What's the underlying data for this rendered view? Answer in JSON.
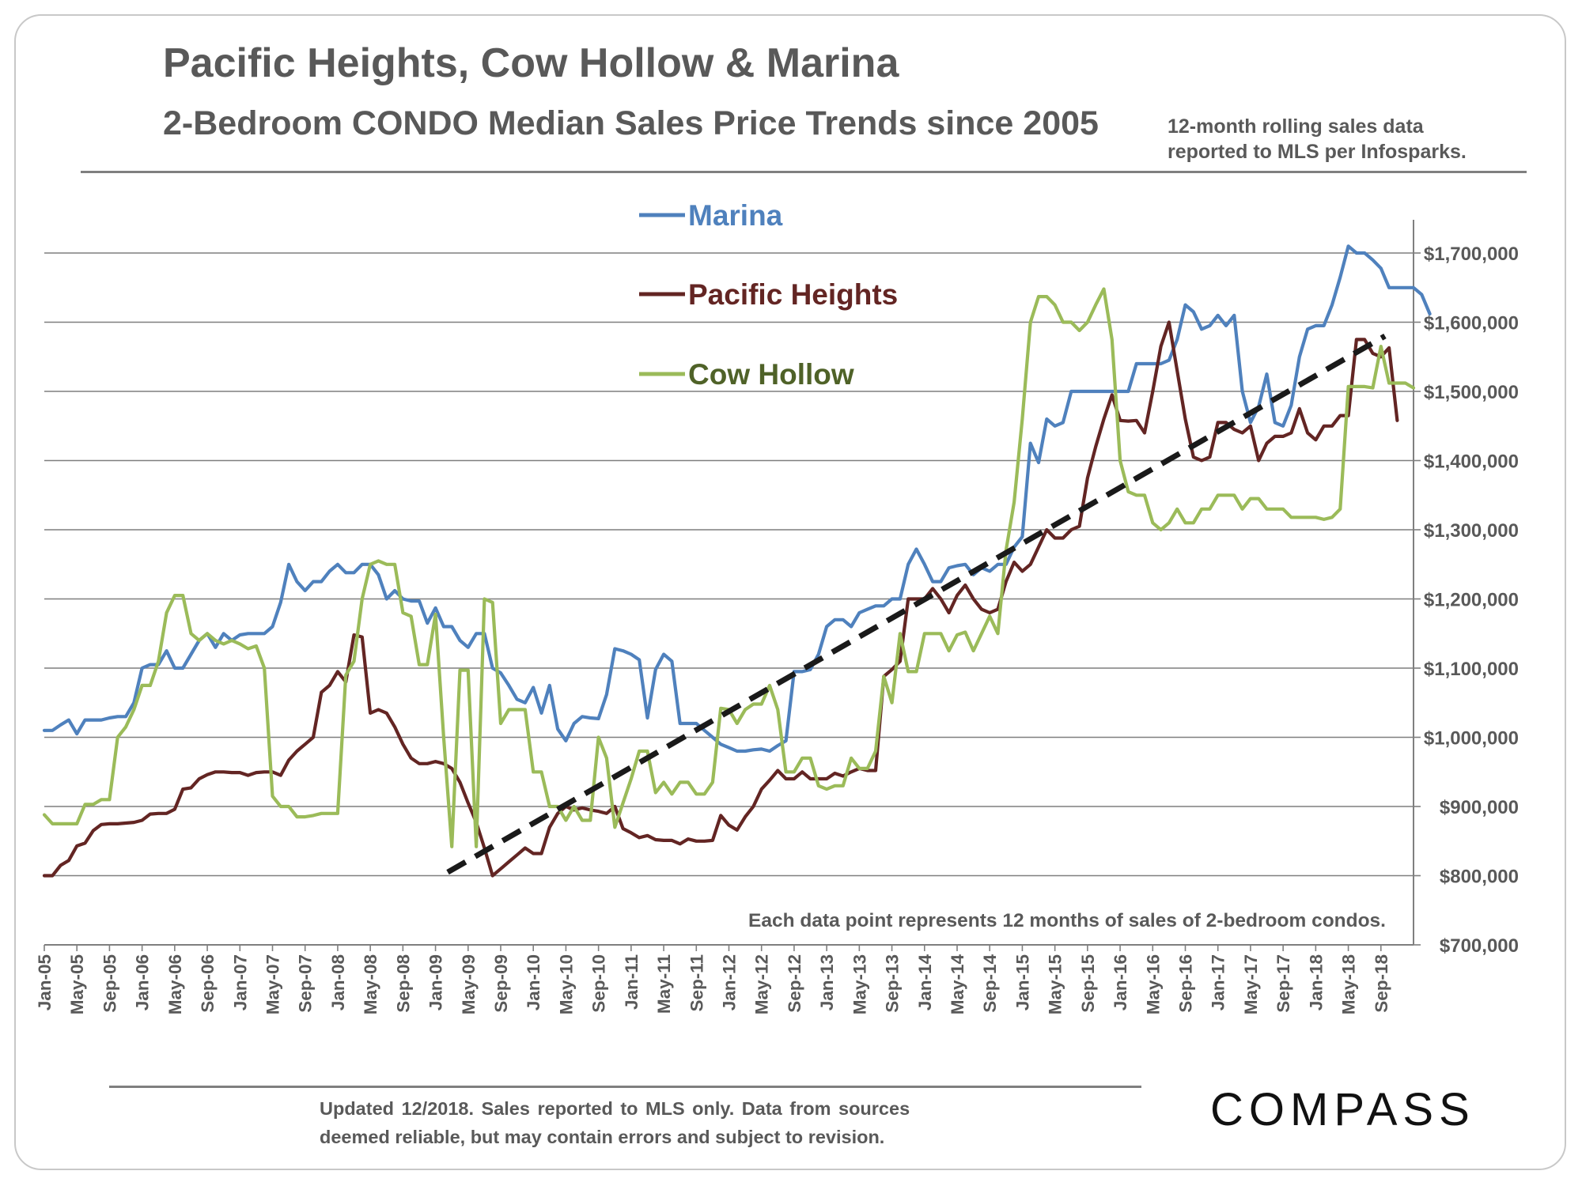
{
  "chart_data": {
    "type": "line",
    "title": "Pacific Heights, Cow Hollow & Marina",
    "subtitle": "2-Bedroom CONDO Median Sales Price Trends since 2005",
    "note_lines": [
      "12-month rolling sales data",
      "reported to MLS per Infosparks."
    ],
    "annotation": "Each data point represents 12 months of sales of 2-bedroom condos.",
    "ylim": [
      700000,
      1700000
    ],
    "y_ticks": [
      "$1,700,000",
      "$1,600,000",
      "$1,500,000",
      "$1,400,000",
      "$1,300,000",
      "$1,200,000",
      "$1,100,000",
      "$1,000,000",
      "$900,000",
      "$800,000",
      "$700,000"
    ],
    "x_ticks": [
      "Jan-05",
      "May-05",
      "Sep-05",
      "Jan-06",
      "May-06",
      "Sep-06",
      "Jan-07",
      "May-07",
      "Sep-07",
      "Jan-08",
      "May-08",
      "Sep-08",
      "Jan-09",
      "May-09",
      "Sep-09",
      "Jan-10",
      "May-10",
      "Sep-10",
      "Jan-11",
      "May-11",
      "Sep-11",
      "Jan-12",
      "May-12",
      "Sep-12",
      "Jan-13",
      "May-13",
      "Sep-13",
      "Jan-14",
      "May-14",
      "Sep-14",
      "Jan-15",
      "May-15",
      "Sep-15",
      "Jan-16",
      "May-16",
      "Sep-16",
      "Jan-17",
      "May-17",
      "Sep-17",
      "Jan-18",
      "May-18",
      "Sep-18"
    ],
    "x_range": [
      0,
      167
    ],
    "series": [
      {
        "name": "Marina",
        "color": "#4f81bd",
        "values": [
          1010000,
          1010000,
          1018000,
          1025000,
          1005000,
          1025000,
          1025000,
          1025000,
          1028000,
          1030000,
          1030000,
          1050000,
          1100000,
          1105000,
          1105000,
          1125000,
          1100000,
          1100000,
          1120000,
          1140000,
          1150000,
          1130000,
          1150000,
          1140000,
          1148000,
          1150000,
          1150000,
          1150000,
          1160000,
          1195000,
          1250000,
          1225000,
          1212000,
          1225000,
          1225000,
          1240000,
          1250000,
          1238000,
          1238000,
          1250000,
          1250000,
          1235000,
          1200000,
          1212000,
          1200000,
          1197000,
          1197000,
          1165000,
          1187000,
          1160000,
          1160000,
          1140000,
          1130000,
          1150000,
          1150000,
          1100000,
          1093000,
          1075000,
          1055000,
          1050000,
          1072000,
          1035000,
          1075000,
          1012000,
          995000,
          1020000,
          1030000,
          1028000,
          1027000,
          1062000,
          1128000,
          1125000,
          1120000,
          1112000,
          1028000,
          1098000,
          1120000,
          1110000,
          1020000,
          1020000,
          1020000,
          1010000,
          1000000,
          990000,
          985000,
          980000,
          980000,
          982000,
          983000,
          980000,
          988000,
          995000,
          1095000,
          1095000,
          1098000,
          1120000,
          1160000,
          1170000,
          1170000,
          1160000,
          1180000,
          1185000,
          1190000,
          1190000,
          1200000,
          1200000,
          1250000,
          1272000,
          1250000,
          1225000,
          1225000,
          1245000,
          1248000,
          1250000,
          1235000,
          1245000,
          1240000,
          1250000,
          1250000,
          1275000,
          1290000,
          1425000,
          1397000,
          1460000,
          1450000,
          1455000,
          1500000,
          1500000,
          1500000,
          1500000,
          1500000,
          1500000,
          1500000,
          1500000,
          1540000,
          1540000,
          1540000,
          1540000,
          1545000,
          1575000,
          1625000,
          1615000,
          1590000,
          1595000,
          1610000,
          1595000,
          1610000,
          1500000,
          1455000,
          1478000,
          1525000,
          1455000,
          1450000,
          1480000,
          1550000,
          1590000,
          1595000,
          1595000,
          1625000,
          1665000,
          1710000,
          1700000,
          1700000,
          1690000,
          1678000,
          1650000,
          1650000,
          1650000,
          1650000,
          1640000,
          1612000
        ]
      },
      {
        "name": "Pacific Heights",
        "color": "#632523",
        "values": [
          800000,
          800000,
          815000,
          822000,
          843000,
          847000,
          865000,
          874000,
          875000,
          875000,
          876000,
          877000,
          880000,
          889000,
          890000,
          890000,
          896000,
          925000,
          927000,
          940000,
          946000,
          950000,
          950000,
          949000,
          949000,
          945000,
          949000,
          950000,
          950000,
          945000,
          967000,
          980000,
          990000,
          1000000,
          1065000,
          1075000,
          1095000,
          1080000,
          1148000,
          1145000,
          1035000,
          1040000,
          1035000,
          1015000,
          990000,
          970000,
          962000,
          962000,
          965000,
          962000,
          955000,
          935000,
          905000,
          877000,
          840000,
          800000,
          810000,
          820000,
          830000,
          840000,
          832000,
          832000,
          870000,
          890000,
          900000,
          895000,
          898000,
          895000,
          893000,
          890000,
          900000,
          868000,
          862000,
          855000,
          858000,
          852000,
          851000,
          851000,
          846000,
          853000,
          850000,
          850000,
          851000,
          887000,
          873000,
          866000,
          885000,
          900000,
          925000,
          938000,
          952000,
          940000,
          940000,
          950000,
          940000,
          940000,
          940000,
          948000,
          944000,
          950000,
          955000,
          952000,
          952000,
          1088000,
          1098000,
          1110000,
          1200000,
          1200000,
          1200000,
          1215000,
          1200000,
          1180000,
          1205000,
          1220000,
          1200000,
          1185000,
          1180000,
          1185000,
          1225000,
          1253000,
          1240000,
          1250000,
          1275000,
          1300000,
          1288000,
          1288000,
          1300000,
          1305000,
          1375000,
          1420000,
          1460000,
          1495000,
          1458000,
          1457000,
          1458000,
          1440000,
          1500000,
          1565000,
          1600000,
          1530000,
          1460000,
          1405000,
          1400000,
          1405000,
          1455000,
          1455000,
          1445000,
          1440000,
          1450000,
          1400000,
          1425000,
          1435000,
          1435000,
          1440000,
          1475000,
          1440000,
          1430000,
          1450000,
          1450000,
          1465000,
          1465000,
          1575000,
          1575000,
          1555000,
          1550000,
          1563000,
          1458000
        ]
      },
      {
        "name": "Cow Hollow",
        "color": "#9bbb59",
        "values": [
          888000,
          875000,
          875000,
          875000,
          875000,
          903000,
          903000,
          910000,
          910000,
          1000000,
          1015000,
          1040000,
          1075000,
          1075000,
          1110000,
          1180000,
          1205000,
          1205000,
          1150000,
          1140000,
          1150000,
          1140000,
          1135000,
          1140000,
          1135000,
          1128000,
          1132000,
          1100000,
          915000,
          900000,
          900000,
          885000,
          885000,
          887000,
          890000,
          890000,
          890000,
          1090000,
          1110000,
          1200000,
          1250000,
          1255000,
          1250000,
          1250000,
          1180000,
          1175000,
          1105000,
          1105000,
          1178000,
          1000000,
          842000,
          1097000,
          1097000,
          842000,
          1200000,
          1195000,
          1020000,
          1040000,
          1040000,
          1040000,
          950000,
          950000,
          900000,
          900000,
          880000,
          900000,
          880000,
          880000,
          1000000,
          970000,
          870000,
          905000,
          940000,
          980000,
          980000,
          920000,
          935000,
          918000,
          935000,
          935000,
          918000,
          918000,
          935000,
          1042000,
          1040000,
          1020000,
          1040000,
          1048000,
          1048000,
          1075000,
          1040000,
          950000,
          950000,
          970000,
          970000,
          930000,
          925000,
          930000,
          930000,
          970000,
          955000,
          955000,
          980000,
          1088000,
          1050000,
          1150000,
          1095000,
          1095000,
          1150000,
          1150000,
          1150000,
          1125000,
          1148000,
          1152000,
          1125000,
          1150000,
          1175000,
          1150000,
          1270000,
          1340000,
          1460000,
          1600000,
          1637000,
          1637000,
          1625000,
          1600000,
          1600000,
          1588000,
          1600000,
          1625000,
          1648000,
          1575000,
          1400000,
          1355000,
          1350000,
          1350000,
          1310000,
          1300000,
          1310000,
          1330000,
          1310000,
          1310000,
          1330000,
          1330000,
          1350000,
          1350000,
          1350000,
          1330000,
          1345000,
          1345000,
          1330000,
          1330000,
          1330000,
          1318000,
          1318000,
          1318000,
          1318000,
          1315000,
          1318000,
          1330000,
          1507000,
          1507000,
          1507000,
          1505000,
          1565000,
          1512000,
          1512000,
          1512000,
          1505000
        ]
      }
    ],
    "trendline": {
      "style": "dashed",
      "color": "#1a1a1a",
      "x": [
        49.5,
        164.5
      ],
      "y": [
        805000,
        1580000
      ]
    }
  },
  "footer": {
    "line1": "Updated 12/2018. Sales reported to MLS only. Data from sources",
    "line2": "deemed reliable, but may contain errors and subject to revision."
  },
  "brand": {
    "logo_text": "COMPASS"
  }
}
